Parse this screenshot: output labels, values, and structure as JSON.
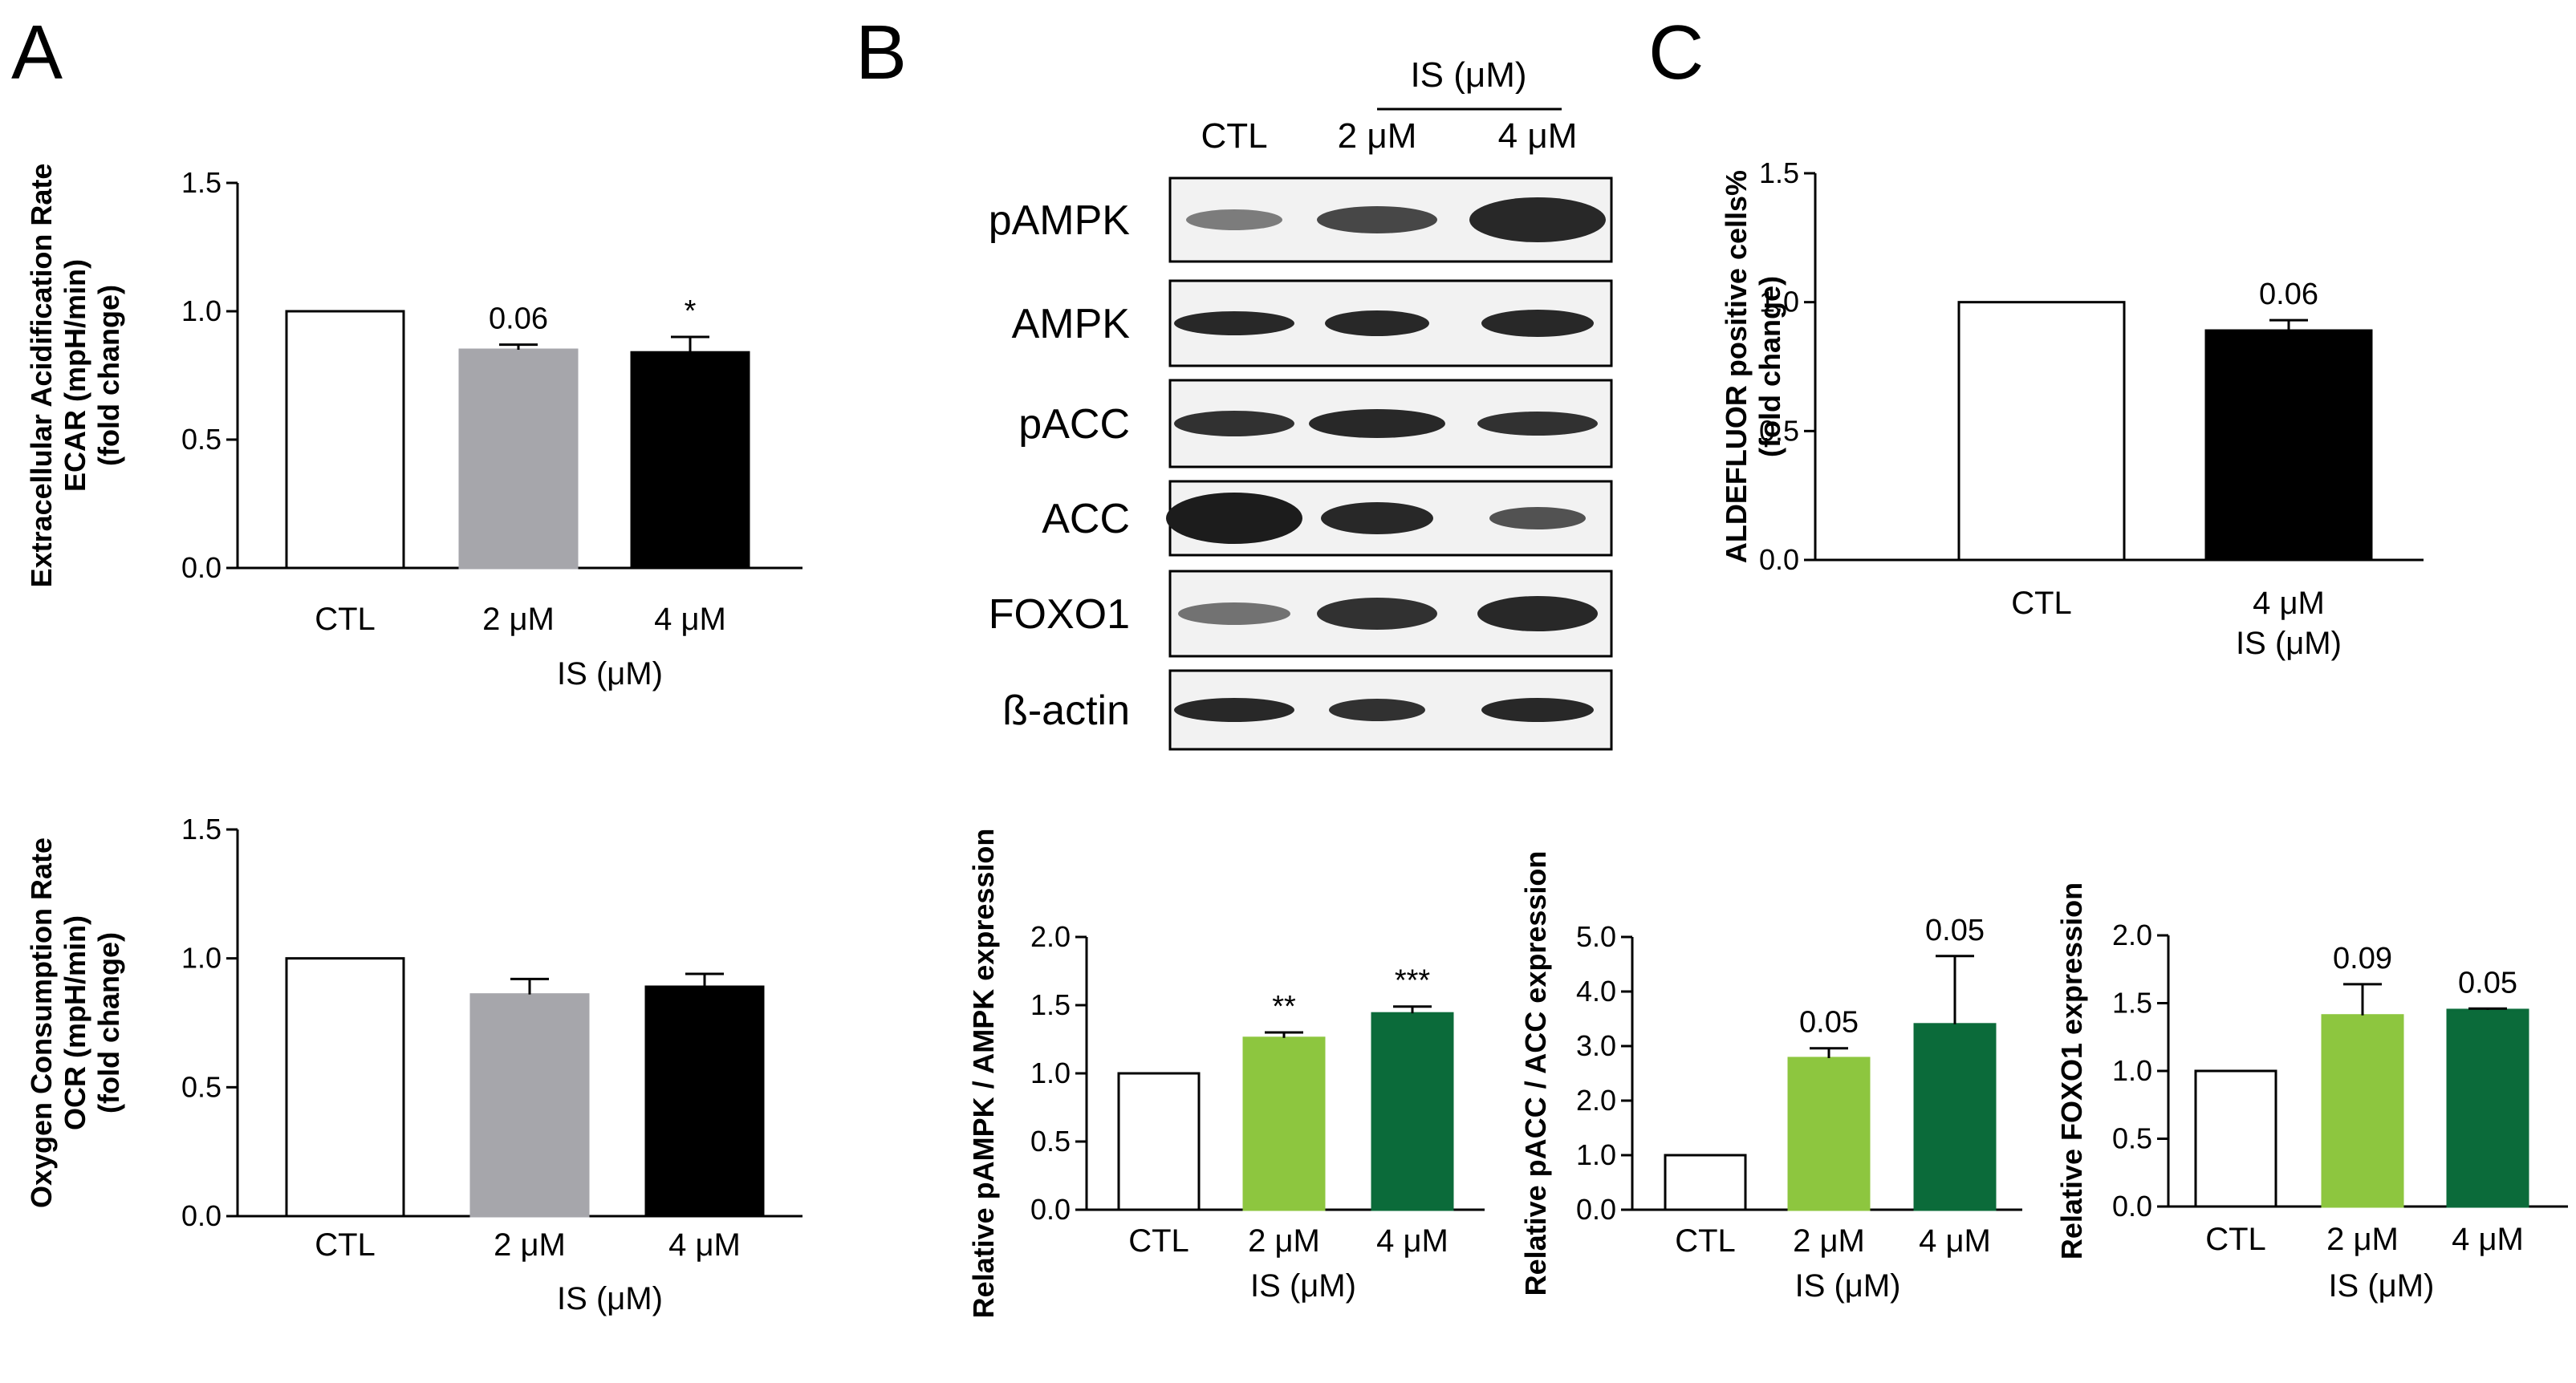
{
  "panels": {
    "a": "A",
    "b": "B",
    "c": "C"
  },
  "colors": {
    "white": "#ffffff",
    "gray": "#a6a6ab",
    "black": "#000000",
    "light_green": "#8dc63f",
    "dark_green": "#0b6b3a"
  },
  "blot": {
    "group_label": "IS (μM)",
    "lanes": [
      "CTL",
      "2 μM",
      "4 μM"
    ],
    "rows": [
      "pAMPK",
      "AMPK",
      "pACC",
      "ACC",
      "FOXO1",
      "ß-actin"
    ]
  },
  "chart_data": [
    {
      "id": "ecar",
      "type": "bar",
      "categories": [
        "CTL",
        "2 μM",
        "4 μM"
      ],
      "values": [
        1.0,
        0.85,
        0.84
      ],
      "errors": [
        0,
        0.02,
        0.06
      ],
      "annotations": [
        "",
        "0.06",
        "*"
      ],
      "colors": [
        "#ffffff",
        "#a6a6ab",
        "#000000"
      ],
      "ylabel_lines": [
        "Extracellular Acidification Rate",
        "ECAR (mpH/min)",
        "(fold change)"
      ],
      "xlabel": "IS (μM)",
      "ylim": [
        0,
        1.5
      ],
      "yticks": [
        "0.0",
        "0.5",
        "1.0",
        "1.5"
      ]
    },
    {
      "id": "ocr",
      "type": "bar",
      "categories": [
        "CTL",
        "2 μM",
        "4 μM"
      ],
      "values": [
        1.0,
        0.86,
        0.89
      ],
      "errors": [
        0,
        0.06,
        0.05
      ],
      "annotations": [
        "",
        "",
        ""
      ],
      "colors": [
        "#ffffff",
        "#a6a6ab",
        "#000000"
      ],
      "ylabel_lines": [
        "Oxygen Consumption Rate",
        "OCR (mpH/min)",
        "(fold change)"
      ],
      "xlabel": "IS (μM)",
      "ylim": [
        0,
        1.5
      ],
      "yticks": [
        "0.0",
        "0.5",
        "1.0",
        "1.5"
      ]
    },
    {
      "id": "aldefluor",
      "type": "bar",
      "categories": [
        "CTL",
        "4 μM"
      ],
      "values": [
        1.0,
        0.89
      ],
      "errors": [
        0,
        0.04
      ],
      "annotations": [
        "",
        "0.06"
      ],
      "colors": [
        "#ffffff",
        "#000000"
      ],
      "ylabel_lines": [
        "ALDEFLUOR positive cells%",
        "(fold change)"
      ],
      "xlabel": "IS (μM)",
      "ylim": [
        0,
        1.5
      ],
      "yticks": [
        "0.0",
        "0.5",
        "1.0",
        "1.5"
      ]
    },
    {
      "id": "pampk",
      "type": "bar",
      "categories": [
        "CTL",
        "2 μM",
        "4 μM"
      ],
      "values": [
        1.0,
        1.26,
        1.44
      ],
      "errors": [
        0,
        0.04,
        0.05
      ],
      "annotations": [
        "",
        "**",
        "***"
      ],
      "colors": [
        "#ffffff",
        "#8dc63f",
        "#0b6b3a"
      ],
      "ylabel_lines": [
        "Relative pAMPK / AMPK expression"
      ],
      "xlabel": "IS (μM)",
      "ylim": [
        0,
        2.0
      ],
      "yticks": [
        "0.0",
        "0.5",
        "1.0",
        "1.5",
        "2.0"
      ]
    },
    {
      "id": "pacc",
      "type": "bar",
      "categories": [
        "CTL",
        "2 μM",
        "4 μM"
      ],
      "values": [
        1.0,
        2.78,
        3.4
      ],
      "errors": [
        0,
        0.18,
        1.25
      ],
      "annotations": [
        "",
        "0.05",
        "0.05"
      ],
      "colors": [
        "#ffffff",
        "#8dc63f",
        "#0b6b3a"
      ],
      "ylabel_lines": [
        "Relative pACC / ACC expression"
      ],
      "xlabel": "IS (μM)",
      "ylim": [
        0,
        5.0
      ],
      "yticks": [
        "0.0",
        "1.0",
        "2.0",
        "3.0",
        "4.0",
        "5.0"
      ]
    },
    {
      "id": "foxo1",
      "type": "bar",
      "categories": [
        "CTL",
        "2 μM",
        "4 μM"
      ],
      "values": [
        1.0,
        1.41,
        1.45
      ],
      "errors": [
        0,
        0.23,
        0.01
      ],
      "annotations": [
        "",
        "0.09",
        "0.05"
      ],
      "colors": [
        "#ffffff",
        "#8dc63f",
        "#0b6b3a"
      ],
      "ylabel_lines": [
        "Relative FOXO1 expression"
      ],
      "xlabel": "IS (μM)",
      "ylim": [
        0,
        2.0
      ],
      "yticks": [
        "0.0",
        "0.5",
        "1.0",
        "1.5",
        "2.0"
      ]
    }
  ]
}
